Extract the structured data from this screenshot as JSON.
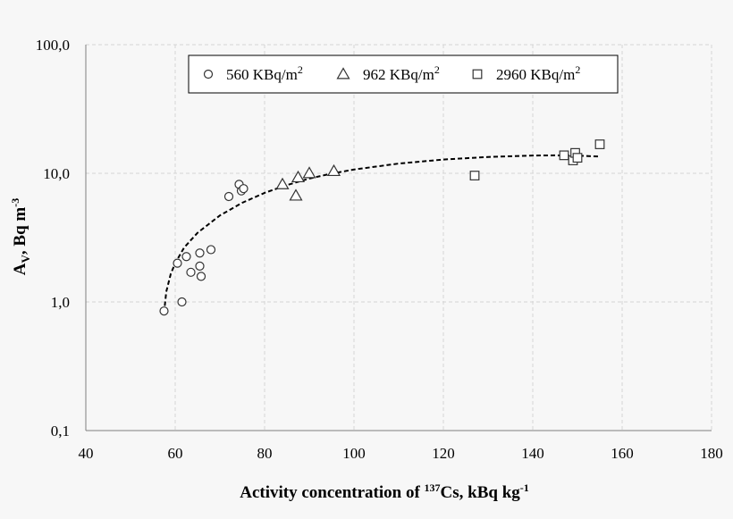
{
  "chart_data": {
    "type": "scatter",
    "title": "",
    "xlabel_main": "Activity concentration of ",
    "xlabel_sup": "137",
    "xlabel_rest": "Cs, kBq kg",
    "xlabel_sup2": "-1",
    "ylabel_main": "A",
    "ylabel_sub": "V",
    "ylabel_rest": ", Bq m",
    "ylabel_sup": "-3",
    "xlim": [
      40,
      180
    ],
    "ylim": [
      0.1,
      100
    ],
    "yscale": "log",
    "x_ticks": [
      40,
      60,
      80,
      100,
      120,
      140,
      160,
      180
    ],
    "x_tick_labels": [
      "40",
      "60",
      "80",
      "100",
      "120",
      "140",
      "160",
      "180"
    ],
    "y_ticks": [
      0.1,
      1,
      10,
      100
    ],
    "y_tick_labels": [
      "0,1",
      "1,0",
      "10,0",
      "100,0"
    ],
    "grid": true,
    "legend_position": "top-center",
    "series": [
      {
        "name": "560 KBq/m",
        "name_sup": "2",
        "marker": "circle",
        "points": [
          [
            57.5,
            0.85
          ],
          [
            60.5,
            2.0
          ],
          [
            61.5,
            1.0
          ],
          [
            62.5,
            2.25
          ],
          [
            63.5,
            1.7
          ],
          [
            65.5,
            2.4
          ],
          [
            65.5,
            1.9
          ],
          [
            65.8,
            1.58
          ],
          [
            68,
            2.55
          ],
          [
            72,
            6.6
          ],
          [
            74.3,
            8.2
          ],
          [
            74.8,
            7.3
          ],
          [
            75.3,
            7.6
          ]
        ]
      },
      {
        "name": "962 KBq/m",
        "name_sup": "2",
        "marker": "triangle",
        "points": [
          [
            84,
            8.2
          ],
          [
            87,
            6.7
          ],
          [
            87.5,
            9.3
          ],
          [
            90,
            10.0
          ],
          [
            95.5,
            10.4
          ]
        ]
      },
      {
        "name": "2960 KBq/m",
        "name_sup": "2",
        "marker": "square",
        "points": [
          [
            127,
            9.6
          ],
          [
            147,
            13.8
          ],
          [
            149,
            12.6
          ],
          [
            149.5,
            14.4
          ],
          [
            150,
            13.2
          ],
          [
            155,
            16.8
          ]
        ]
      }
    ],
    "trendline": {
      "style": "dashed",
      "type": "polynomial-fit",
      "points": [
        [
          57.5,
          0.82
        ],
        [
          58,
          1.2
        ],
        [
          59,
          1.65
        ],
        [
          60,
          2.0
        ],
        [
          62,
          2.65
        ],
        [
          65,
          3.45
        ],
        [
          70,
          4.7
        ],
        [
          75,
          5.9
        ],
        [
          80,
          7.05
        ],
        [
          85,
          8.1
        ],
        [
          90,
          9.1
        ],
        [
          95,
          9.95
        ],
        [
          100,
          10.7
        ],
        [
          110,
          11.9
        ],
        [
          120,
          12.8
        ],
        [
          130,
          13.4
        ],
        [
          140,
          13.75
        ],
        [
          145,
          13.8
        ],
        [
          150,
          13.7
        ],
        [
          155,
          13.5
        ]
      ]
    }
  }
}
